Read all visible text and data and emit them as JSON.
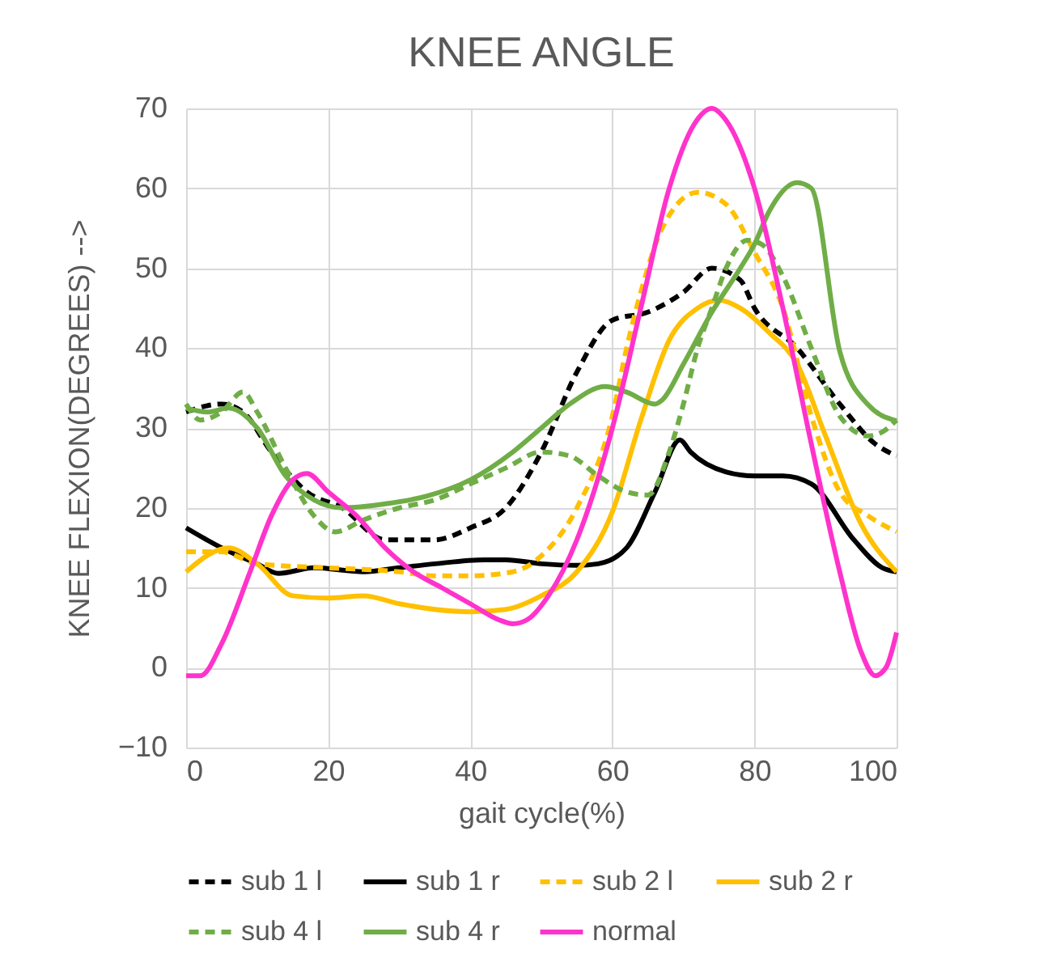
{
  "chart_data": {
    "type": "line",
    "title": "KNEE ANGLE",
    "xlabel": "gait cycle(%)",
    "ylabel": "KNEE FLEXION(DEGREES) -->",
    "xlim": [
      0,
      100
    ],
    "xticks": [
      0,
      20,
      40,
      60,
      80,
      100
    ],
    "ylim": [
      -10,
      70
    ],
    "yticks": [
      -10,
      0,
      10,
      20,
      30,
      40,
      50,
      60,
      70
    ],
    "grid": true,
    "legend": "bottom",
    "marker": "none",
    "series": [
      {
        "name": "sub 1 l",
        "color": "#000000",
        "line_style": "dashed",
        "x": [
          0,
          5,
          8,
          12,
          17,
          22,
          28,
          35,
          40,
          45,
          50,
          55,
          60,
          65,
          70,
          74,
          78,
          80,
          86,
          92,
          97,
          100
        ],
        "values": [
          32,
          33,
          32,
          27,
          22,
          20,
          16,
          16,
          17.5,
          20,
          27,
          37,
          43.5,
          44.5,
          47,
          50,
          48.5,
          45,
          40,
          33,
          28,
          26.5
        ]
      },
      {
        "name": "sub 1 r",
        "color": "#000000",
        "line_style": "solid",
        "x": [
          0,
          5,
          10,
          13,
          18,
          25,
          30,
          35,
          42,
          45,
          50,
          55,
          58,
          62,
          66,
          69.5,
          71,
          76,
          80,
          84,
          88,
          94,
          98,
          100
        ],
        "values": [
          17.5,
          15,
          13,
          11.8,
          12.5,
          12,
          12.5,
          13,
          13.5,
          13.5,
          13,
          12.8,
          13,
          15,
          22,
          28.5,
          27,
          24.5,
          24,
          24,
          23,
          16,
          12.5,
          12
        ]
      },
      {
        "name": "sub 2 l",
        "color": "#ffc000",
        "line_style": "dashed",
        "x": [
          0,
          5,
          10,
          20,
          25,
          30,
          35,
          40,
          46,
          50,
          55,
          60,
          62,
          64,
          67,
          72,
          76,
          80,
          84,
          88,
          92,
          96,
          100
        ],
        "values": [
          14.5,
          14.5,
          13,
          12.5,
          12.3,
          12,
          11.5,
          11.5,
          12,
          14,
          20,
          31.5,
          40,
          47,
          55,
          59.5,
          58,
          52,
          45,
          31.5,
          22,
          19,
          17
        ]
      },
      {
        "name": "sub 2 r",
        "color": "#ffc000",
        "line_style": "solid",
        "x": [
          0,
          6,
          10,
          15,
          20,
          25,
          30,
          40,
          45,
          50,
          55,
          60,
          64,
          68,
          72,
          75,
          78,
          82,
          86,
          90,
          95,
          100
        ],
        "values": [
          12,
          15,
          13,
          9,
          8.7,
          9,
          8,
          7,
          7.3,
          9,
          12,
          19.5,
          31,
          41,
          45,
          46,
          45,
          42,
          38,
          29,
          18,
          12
        ]
      },
      {
        "name": "sub 4 l",
        "color": "#70ad47",
        "line_style": "dashed",
        "x": [
          0,
          2,
          5,
          8,
          10,
          14,
          18,
          21,
          25,
          30,
          35,
          40,
          45,
          50,
          54,
          58,
          62,
          65,
          68,
          70,
          72,
          74,
          76,
          79,
          81,
          84,
          88,
          92,
          96,
          98,
          100
        ],
        "values": [
          33,
          31,
          32,
          34.5,
          32,
          25,
          19,
          17,
          18.5,
          20,
          21,
          23,
          25,
          27,
          26.5,
          24,
          22,
          21.6,
          27,
          33,
          40,
          45,
          50,
          53.5,
          53,
          49,
          40,
          31.5,
          29,
          29.5,
          31
        ]
      },
      {
        "name": "sub 4 r",
        "color": "#70ad47",
        "line_style": "solid",
        "x": [
          0,
          3,
          6,
          10,
          14,
          18,
          22,
          28,
          34,
          40,
          46,
          50,
          54,
          59,
          62,
          66,
          67,
          70,
          74,
          78,
          80,
          82,
          86,
          88,
          92,
          96,
          100
        ],
        "values": [
          32.5,
          32,
          32.5,
          30,
          24,
          21,
          20,
          20.5,
          21.5,
          23.5,
          27,
          30,
          33,
          35.2,
          34.5,
          33,
          33.5,
          38,
          44.5,
          50,
          53,
          57,
          60.7,
          60,
          39.6,
          32.9,
          30.9
        ]
      },
      {
        "name": "normal",
        "color": "#ff33cc",
        "line_style": "solid",
        "x": [
          0,
          2,
          5,
          9,
          12,
          15,
          17,
          20,
          24,
          28,
          32,
          36,
          40,
          44,
          46,
          48,
          51,
          55,
          60,
          64,
          68,
          71.5,
          74,
          76,
          80,
          84,
          88,
          92,
          95,
          97,
          98.5,
          100
        ],
        "values": [
          -1,
          -1,
          3,
          12,
          19,
          23.5,
          24.3,
          22,
          19,
          15,
          12,
          10,
          8,
          6,
          5.5,
          6,
          9,
          16,
          30,
          45,
          60,
          68,
          70,
          68.5,
          60,
          45,
          28,
          12,
          2,
          -1,
          0,
          4.4
        ]
      }
    ]
  }
}
